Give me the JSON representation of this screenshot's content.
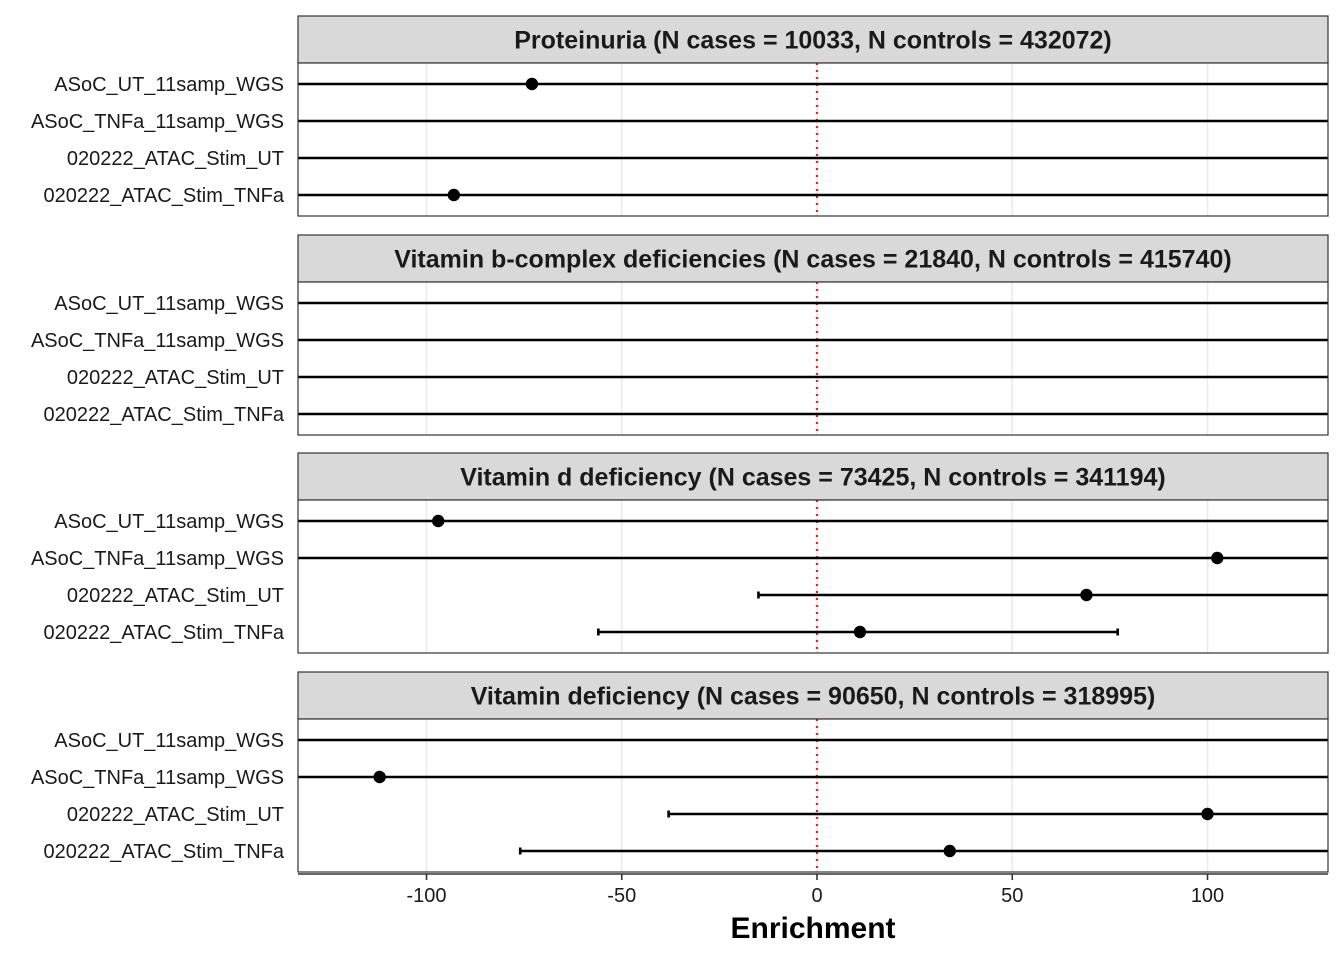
{
  "chart_data": {
    "type": "forest",
    "xlabel": "Enrichment",
    "xlim": [
      -132,
      132
    ],
    "xticks": [
      -100,
      -50,
      0,
      50,
      100
    ],
    "reference_line": {
      "x": 0,
      "color": "#e8231e",
      "style": "dotted"
    },
    "rows": [
      "ASoC_UT_11samp_WGS",
      "ASoC_TNFa_11samp_WGS",
      "020222_ATAC_Stim_UT",
      "020222_ATAC_Stim_TNFa"
    ],
    "panels": [
      {
        "title": "Proteinuria (N cases = 10033, N controls = 432072)",
        "points": [
          {
            "label": "ASoC_UT_11samp_WGS",
            "estimate": -73,
            "lower": null,
            "upper": null
          },
          {
            "label": "ASoC_TNFa_11samp_WGS",
            "estimate": null,
            "lower": null,
            "upper": null
          },
          {
            "label": "020222_ATAC_Stim_UT",
            "estimate": null,
            "lower": null,
            "upper": null
          },
          {
            "label": "020222_ATAC_Stim_TNFa",
            "estimate": -93,
            "lower": null,
            "upper": null
          }
        ]
      },
      {
        "title": "Vitamin b-complex deficiencies (N cases = 21840, N controls = 415740)",
        "points": [
          {
            "label": "ASoC_UT_11samp_WGS",
            "estimate": null,
            "lower": null,
            "upper": null
          },
          {
            "label": "ASoC_TNFa_11samp_WGS",
            "estimate": null,
            "lower": null,
            "upper": null
          },
          {
            "label": "020222_ATAC_Stim_UT",
            "estimate": null,
            "lower": null,
            "upper": null
          },
          {
            "label": "020222_ATAC_Stim_TNFa",
            "estimate": null,
            "lower": null,
            "upper": null
          }
        ]
      },
      {
        "title": "Vitamin d deficiency (N cases = 73425, N controls = 341194)",
        "points": [
          {
            "label": "ASoC_UT_11samp_WGS",
            "estimate": -97,
            "lower": null,
            "upper": null
          },
          {
            "label": "ASoC_TNFa_11samp_WGS",
            "estimate": 102.5,
            "lower": null,
            "upper": null
          },
          {
            "label": "020222_ATAC_Stim_UT",
            "estimate": 69,
            "lower": -15,
            "upper": null
          },
          {
            "label": "020222_ATAC_Stim_TNFa",
            "estimate": 11,
            "lower": -56,
            "upper": 77
          }
        ]
      },
      {
        "title": "Vitamin deficiency (N cases = 90650, N controls = 318995)",
        "points": [
          {
            "label": "ASoC_UT_11samp_WGS",
            "estimate": null,
            "lower": null,
            "upper": null
          },
          {
            "label": "ASoC_TNFa_11samp_WGS",
            "estimate": -112,
            "lower": null,
            "upper": null
          },
          {
            "label": "020222_ATAC_Stim_UT",
            "estimate": 100,
            "lower": -38,
            "upper": null
          },
          {
            "label": "020222_ATAC_Stim_TNFa",
            "estimate": 34,
            "lower": -76,
            "upper": null
          }
        ]
      }
    ],
    "grid": true,
    "colors": {
      "point": "#000000",
      "line": "#000000",
      "strip_bg": "#d9d9d9",
      "grid": "#ebebeb"
    }
  }
}
